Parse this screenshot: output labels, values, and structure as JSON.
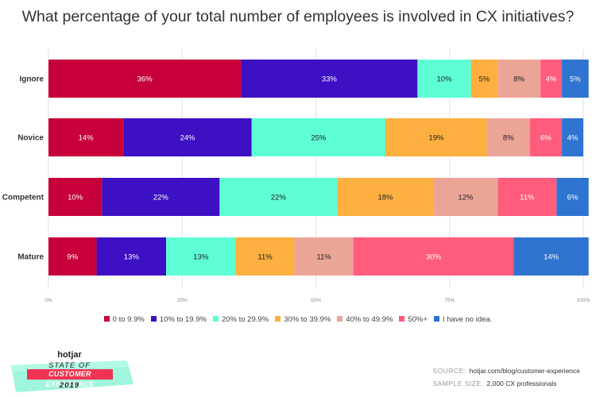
{
  "chart_data": {
    "type": "bar",
    "orientation": "horizontal",
    "stacked": true,
    "title": "What percentage of your total number of employees is involved in CX initiatives?",
    "categories": [
      "Ignore",
      "Novice",
      "Competent",
      "Mature"
    ],
    "series": [
      {
        "name": "0 to 9.9%",
        "color": "#c8003a",
        "values": [
          36,
          14,
          10,
          9
        ]
      },
      {
        "name": "10% to 19.9%",
        "color": "#3d10c4",
        "values": [
          33,
          24,
          22,
          13
        ]
      },
      {
        "name": "20% to 29.9%",
        "color": "#5effd5",
        "values": [
          10,
          25,
          22,
          13
        ]
      },
      {
        "name": "30% to 39.9%",
        "color": "#fdaf40",
        "values": [
          5,
          19,
          18,
          11
        ]
      },
      {
        "name": "40% to 49.9%",
        "color": "#eba597",
        "values": [
          8,
          8,
          12,
          11
        ]
      },
      {
        "name": "50%+",
        "color": "#ff5c7e",
        "values": [
          4,
          6,
          11,
          30
        ]
      },
      {
        "name": "I have no idea.",
        "color": "#2f74d0",
        "values": [
          5,
          4,
          6,
          14
        ]
      }
    ],
    "x_ticks": [
      "0%",
      "25%",
      "50%",
      "75%",
      "100%"
    ],
    "xlim": [
      0,
      100
    ],
    "grid": true,
    "legend_position": "bottom"
  },
  "branding": {
    "hotjar": "hotjar",
    "state_of": "STATE OF",
    "customer_experience": "CUSTOMER EXPERIENCE",
    "year": "2019"
  },
  "footer": {
    "source_label": "SOURCE:",
    "source_value": "hotjar.com/blog/customer-experience",
    "sample_label": "SAMPLE SIZE:",
    "sample_value": "2,000 CX professionals"
  }
}
